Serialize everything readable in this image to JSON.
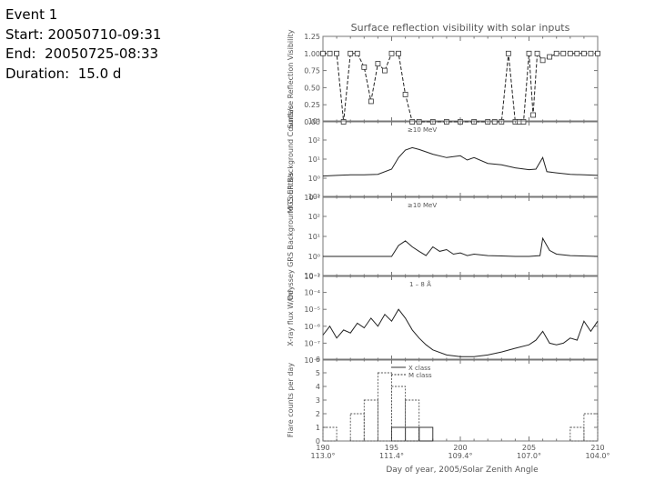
{
  "event": {
    "title": "Event 1",
    "start_label": "Start:",
    "start_value": "20050710-09:31",
    "end_label": "End:",
    "end_value": "20050725-08:33",
    "duration_label": "Duration:",
    "duration_value": "15.0 d"
  },
  "chart_data": [
    {
      "type": "line",
      "title": "Surface reflection visibility with solar inputs",
      "ylabel": "Surface Reflection Visibility",
      "ylim": [
        0,
        1.25
      ],
      "yticks": [
        "0.00",
        "0.25",
        "0.50",
        "0.75",
        "1.00",
        "1.25"
      ],
      "x": [
        190,
        190.5,
        191,
        191.5,
        192,
        192.5,
        193,
        193.5,
        194,
        194.5,
        195,
        195.5,
        196,
        196.5,
        197,
        198,
        199,
        200,
        201,
        202,
        202.5,
        203,
        203.5,
        204,
        204.3,
        204.6,
        205,
        205.3,
        205.6,
        206,
        206.5,
        207,
        207.5,
        208,
        208.5,
        209,
        209.5,
        210
      ],
      "values": [
        1.0,
        1.0,
        1.0,
        0.0,
        1.0,
        1.0,
        0.8,
        0.3,
        0.85,
        0.75,
        1.0,
        1.0,
        0.4,
        0.0,
        0.0,
        0.0,
        0.0,
        0.0,
        0.0,
        0.0,
        0.0,
        0.0,
        1.0,
        0.0,
        0.0,
        0.0,
        1.0,
        0.1,
        1.0,
        0.9,
        0.95,
        1.0,
        1.0,
        1.0,
        1.0,
        1.0,
        1.0,
        1.0
      ]
    },
    {
      "type": "line",
      "annotation": "≥10 MeV",
      "ylabel": "MGS ER Background Counts/s",
      "ylim": [
        0.1,
        1000
      ],
      "log_scale": true,
      "yticks": [
        "10⁻¹",
        "10⁰",
        "10¹",
        "10²",
        "10³"
      ],
      "x": [
        190,
        191,
        192,
        193,
        194,
        195,
        195.5,
        196,
        196.5,
        197,
        197.5,
        198,
        199,
        200,
        200.5,
        201,
        202,
        203,
        204,
        205,
        205.5,
        206,
        206.3,
        207,
        208,
        209,
        210
      ],
      "values": [
        1.3,
        1.4,
        1.5,
        1.5,
        1.6,
        3.0,
        12,
        30,
        40,
        32,
        24,
        18,
        12,
        15,
        9,
        12,
        6,
        5,
        3.5,
        2.8,
        3.0,
        12,
        2.2,
        1.9,
        1.6,
        1.5,
        1.4
      ]
    },
    {
      "type": "line",
      "annotation": "≥10 MeV",
      "ylabel": "Odyssey GRS Background Counts/s",
      "ylim": [
        0.1,
        1000
      ],
      "log_scale": true,
      "yticks": [
        "10⁻¹",
        "10⁰",
        "10¹",
        "10²",
        "10³"
      ],
      "x": [
        190,
        192,
        194,
        195,
        195.5,
        196,
        196.5,
        197,
        197.5,
        198,
        198.5,
        199,
        199.5,
        200,
        200.5,
        201,
        202,
        203,
        204,
        205,
        205.8,
        206,
        206.5,
        207,
        208,
        210
      ],
      "values": [
        1.0,
        1.0,
        1.0,
        1.0,
        3.5,
        6.0,
        3.0,
        1.8,
        1.1,
        3.0,
        1.8,
        2.2,
        1.3,
        1.5,
        1.1,
        1.3,
        1.1,
        1.05,
        1.0,
        1.0,
        1.1,
        8.0,
        2.0,
        1.3,
        1.1,
        1.0
      ]
    },
    {
      "type": "line",
      "annotation": "1 – 8 Å",
      "ylabel": "X-ray flux W/m²",
      "ylim": [
        1e-08,
        0.001
      ],
      "log_scale": true,
      "yticks": [
        "10⁻⁸",
        "10⁻⁷",
        "10⁻⁶",
        "10⁻⁵",
        "10⁻⁴",
        "10⁻³"
      ],
      "x": [
        190,
        190.5,
        191,
        191.5,
        192,
        192.5,
        193,
        193.5,
        194,
        194.5,
        195,
        195.5,
        196,
        196.5,
        197,
        197.5,
        198,
        199,
        200,
        201,
        202,
        203,
        204,
        205,
        205.5,
        206,
        206.5,
        207,
        207.5,
        208,
        208.5,
        209,
        209.5,
        210
      ],
      "values": [
        3e-07,
        1e-06,
        2e-07,
        6e-07,
        4e-07,
        1.5e-06,
        8e-07,
        3e-06,
        1e-06,
        5e-06,
        2e-06,
        1e-05,
        3e-06,
        6e-07,
        2e-07,
        8e-08,
        4e-08,
        2e-08,
        1.6e-08,
        1.6e-08,
        2e-08,
        3e-08,
        5e-08,
        8e-08,
        1.5e-07,
        5e-07,
        1e-07,
        8e-08,
        1e-07,
        2e-07,
        1.5e-07,
        2e-06,
        5e-07,
        2e-06
      ]
    },
    {
      "type": "bar",
      "ylabel": "Flare counts per day",
      "ylim": [
        0,
        6
      ],
      "yticks": [
        "0",
        "1",
        "2",
        "3",
        "4",
        "5",
        "6"
      ],
      "xlabel": "Day of year, 2005/Solar Zenith Angle",
      "xticks": [
        {
          "day": "190",
          "angle": "113.0°"
        },
        {
          "day": "195",
          "angle": "111.4°"
        },
        {
          "day": "200",
          "angle": "109.4°"
        },
        {
          "day": "205",
          "angle": "107.0°"
        },
        {
          "day": "210",
          "angle": "104.0°"
        }
      ],
      "x": [
        190,
        191,
        192,
        193,
        194,
        195,
        196,
        197,
        198,
        199,
        200,
        201,
        202,
        203,
        204,
        205,
        206,
        207,
        208,
        209
      ],
      "series": [
        {
          "name": "X class",
          "values": [
            0,
            0,
            0,
            0,
            0,
            1,
            1,
            1,
            0,
            0,
            0,
            0,
            0,
            0,
            0,
            0,
            0,
            0,
            0,
            0
          ]
        },
        {
          "name": "M class",
          "values": [
            1,
            0,
            2,
            3,
            5,
            4,
            3,
            0,
            0,
            0,
            0,
            0,
            0,
            0,
            0,
            0,
            0,
            0,
            1,
            2
          ]
        }
      ]
    }
  ]
}
